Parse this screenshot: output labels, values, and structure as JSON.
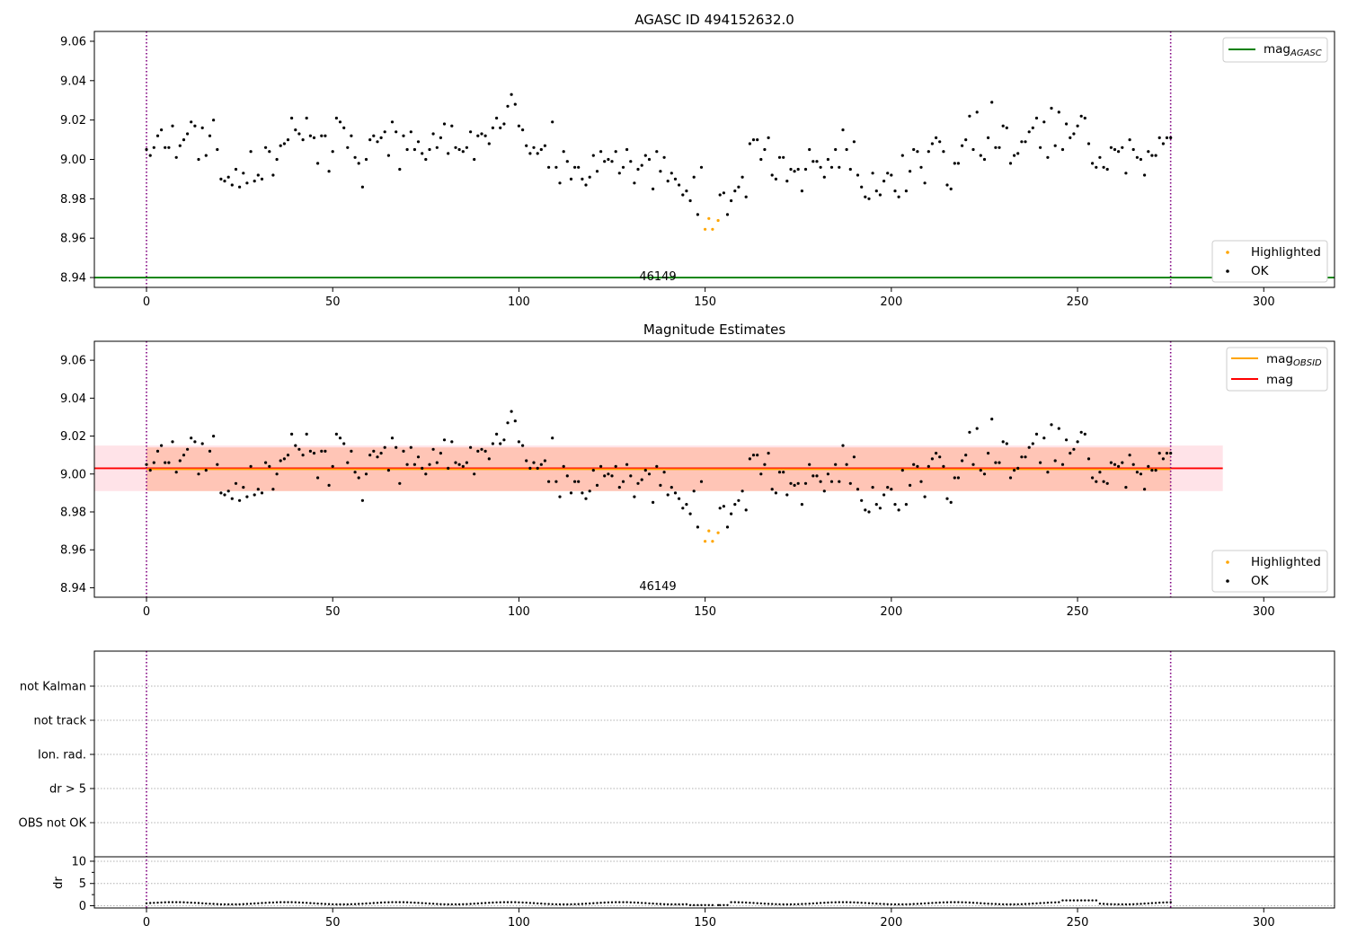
{
  "chart_data": [
    {
      "type": "scatter",
      "title": "AGASC ID 494152632.0",
      "xlim": [
        -14,
        319
      ],
      "ylim": [
        8.935,
        9.065
      ],
      "x_ticks": [
        "0",
        "50",
        "100",
        "150",
        "200",
        "250",
        "300"
      ],
      "y_ticks": [
        "8.94",
        "8.96",
        "8.98",
        "9.00",
        "9.02",
        "9.04",
        "9.06"
      ],
      "reference_lines": [
        {
          "name": "mag",
          "subscript": "AGASC",
          "y": 8.94,
          "color": "#008000"
        }
      ],
      "obsid_marks": [
        {
          "x": 0,
          "color": "#800080",
          "style": "dotted"
        },
        {
          "x": 275,
          "color": "#800080",
          "style": "dotted"
        }
      ],
      "annotations": [
        {
          "text": "46149",
          "x": 137.5
        }
      ],
      "series_legend": [
        {
          "label": "Highlighted",
          "color": "#ffa500"
        },
        {
          "label": "OK",
          "color": "#000000"
        }
      ],
      "series_ref": "mag_points"
    },
    {
      "type": "scatter",
      "title": "Magnitude Estimates",
      "xlim": [
        -14,
        319
      ],
      "ylim": [
        8.935,
        9.07
      ],
      "x_ticks": [
        "0",
        "50",
        "100",
        "150",
        "200",
        "250",
        "300"
      ],
      "y_ticks": [
        "8.94",
        "8.96",
        "8.98",
        "9.00",
        "9.02",
        "9.04",
        "9.06"
      ],
      "mean_lines": [
        {
          "name": "mag",
          "subscript": "OBSID",
          "y": 9.0025,
          "x_range": [
            0,
            275
          ],
          "color": "#ffa500",
          "band": [
            8.991,
            9.014
          ],
          "band_color": "#ffa07a"
        },
        {
          "name": "mag",
          "subscript": "",
          "y": 9.003,
          "x_range": [
            -14,
            289
          ],
          "color": "#ff0000",
          "band": [
            8.991,
            9.015
          ],
          "band_color": "#ffc0cb"
        }
      ],
      "obsid_marks": [
        {
          "x": 0,
          "color": "#800080",
          "style": "dotted"
        },
        {
          "x": 275,
          "color": "#800080",
          "style": "dotted"
        }
      ],
      "annotations": [
        {
          "text": "46149",
          "x": 137.5
        }
      ],
      "series_legend": [
        {
          "label": "Highlighted",
          "color": "#ffa500"
        },
        {
          "label": "OK",
          "color": "#000000"
        }
      ],
      "series_ref": "mag_points"
    },
    {
      "type": "scatter",
      "title": "",
      "xlim": [
        -14,
        319
      ],
      "x_ticks": [
        "0",
        "50",
        "100",
        "150",
        "200",
        "250",
        "300"
      ],
      "flag_rows": [
        "not Kalman",
        "not track",
        "Ion. rad.",
        "dr > 5",
        "OBS not OK"
      ],
      "dr_ylabel": "dr",
      "dr_ylim": [
        -0.5,
        11
      ],
      "dr_ticks": [
        "0",
        "5",
        "10"
      ],
      "obsid_marks": [
        {
          "x": 0,
          "color": "#800080",
          "style": "dotted"
        },
        {
          "x": 275,
          "color": "#800080",
          "style": "dotted"
        }
      ]
    }
  ],
  "mag_points": {
    "highlighted": [
      [
        150,
        8.9645
      ],
      [
        151,
        8.97
      ],
      [
        152,
        8.9645
      ],
      [
        153.5,
        8.969
      ]
    ],
    "ok": [
      [
        0,
        9.005
      ],
      [
        1,
        9.002
      ],
      [
        2,
        9.006
      ],
      [
        3,
        9.012
      ],
      [
        4,
        9.015
      ],
      [
        5,
        9.006
      ],
      [
        6,
        9.006
      ],
      [
        7,
        9.017
      ],
      [
        8,
        9.001
      ],
      [
        9,
        9.007
      ],
      [
        10,
        9.01
      ],
      [
        11,
        9.013
      ],
      [
        12,
        9.019
      ],
      [
        13,
        9.017
      ],
      [
        14,
        9.0
      ],
      [
        15,
        9.016
      ],
      [
        16,
        9.002
      ],
      [
        17,
        9.012
      ],
      [
        18,
        9.02
      ],
      [
        19,
        9.005
      ],
      [
        20,
        8.99
      ],
      [
        21,
        8.989
      ],
      [
        22,
        8.991
      ],
      [
        23,
        8.987
      ],
      [
        24,
        8.995
      ],
      [
        25,
        8.986
      ],
      [
        26,
        8.993
      ],
      [
        27,
        8.988
      ],
      [
        28,
        9.004
      ],
      [
        29,
        8.989
      ],
      [
        30,
        8.992
      ],
      [
        31,
        8.99
      ],
      [
        32,
        9.006
      ],
      [
        33,
        9.004
      ],
      [
        34,
        8.992
      ],
      [
        35,
        9.0
      ],
      [
        36,
        9.007
      ],
      [
        37,
        9.008
      ],
      [
        38,
        9.01
      ],
      [
        39,
        9.021
      ],
      [
        40,
        9.015
      ],
      [
        41,
        9.013
      ],
      [
        42,
        9.01
      ],
      [
        43,
        9.021
      ],
      [
        44,
        9.012
      ],
      [
        45,
        9.011
      ],
      [
        46,
        8.998
      ],
      [
        47,
        9.012
      ],
      [
        48,
        9.012
      ],
      [
        49,
        8.994
      ],
      [
        50,
        9.004
      ],
      [
        51,
        9.021
      ],
      [
        52,
        9.019
      ],
      [
        53,
        9.016
      ],
      [
        54,
        9.006
      ],
      [
        55,
        9.012
      ],
      [
        56,
        9.001
      ],
      [
        57,
        8.998
      ],
      [
        58,
        8.986
      ],
      [
        59,
        9.0
      ],
      [
        60,
        9.01
      ],
      [
        61,
        9.012
      ],
      [
        62,
        9.009
      ],
      [
        63,
        9.011
      ],
      [
        64,
        9.014
      ],
      [
        65,
        9.002
      ],
      [
        66,
        9.019
      ],
      [
        67,
        9.014
      ],
      [
        68,
        8.995
      ],
      [
        69,
        9.012
      ],
      [
        70,
        9.005
      ],
      [
        71,
        9.014
      ],
      [
        72,
        9.005
      ],
      [
        73,
        9.009
      ],
      [
        74,
        9.003
      ],
      [
        75,
        9.0
      ],
      [
        76,
        9.005
      ],
      [
        77,
        9.013
      ],
      [
        78,
        9.006
      ],
      [
        79,
        9.011
      ],
      [
        80,
        9.018
      ],
      [
        81,
        9.003
      ],
      [
        82,
        9.017
      ],
      [
        83,
        9.006
      ],
      [
        84,
        9.005
      ],
      [
        85,
        9.004
      ],
      [
        86,
        9.006
      ],
      [
        87,
        9.014
      ],
      [
        88,
        9.0
      ],
      [
        89,
        9.012
      ],
      [
        90,
        9.013
      ],
      [
        91,
        9.012
      ],
      [
        92,
        9.008
      ],
      [
        93,
        9.016
      ],
      [
        94,
        9.021
      ],
      [
        95,
        9.016
      ],
      [
        96,
        9.018
      ],
      [
        97,
        9.027
      ],
      [
        98,
        9.033
      ],
      [
        99,
        9.028
      ],
      [
        100,
        9.017
      ],
      [
        101,
        9.015
      ],
      [
        102,
        9.007
      ],
      [
        103,
        9.003
      ],
      [
        104,
        9.006
      ],
      [
        105,
        9.003
      ],
      [
        106,
        9.005
      ],
      [
        107,
        9.007
      ],
      [
        108,
        8.996
      ],
      [
        109,
        9.019
      ],
      [
        110,
        8.996
      ],
      [
        111,
        8.988
      ],
      [
        112,
        9.004
      ],
      [
        113,
        8.999
      ],
      [
        114,
        8.99
      ],
      [
        115,
        8.996
      ],
      [
        116,
        8.996
      ],
      [
        117,
        8.99
      ],
      [
        118,
        8.987
      ],
      [
        119,
        8.991
      ],
      [
        120,
        9.002
      ],
      [
        121,
        8.994
      ],
      [
        122,
        9.004
      ],
      [
        123,
        8.999
      ],
      [
        124,
        9.0
      ],
      [
        125,
        8.999
      ],
      [
        126,
        9.004
      ],
      [
        127,
        8.993
      ],
      [
        128,
        8.996
      ],
      [
        129,
        9.005
      ],
      [
        130,
        8.999
      ],
      [
        131,
        8.988
      ],
      [
        132,
        8.995
      ],
      [
        133,
        8.997
      ],
      [
        134,
        9.002
      ],
      [
        135,
        9.0
      ],
      [
        136,
        8.985
      ],
      [
        137,
        9.004
      ],
      [
        138,
        8.994
      ],
      [
        139,
        9.001
      ],
      [
        140,
        8.989
      ],
      [
        141,
        8.993
      ],
      [
        142,
        8.99
      ],
      [
        143,
        8.987
      ],
      [
        144,
        8.982
      ],
      [
        145,
        8.984
      ],
      [
        146,
        8.979
      ],
      [
        147,
        8.991
      ],
      [
        148,
        8.972
      ],
      [
        149,
        8.996
      ],
      [
        154,
        8.982
      ],
      [
        155,
        8.983
      ],
      [
        156,
        8.972
      ],
      [
        157,
        8.979
      ],
      [
        158,
        8.984
      ],
      [
        159,
        8.986
      ],
      [
        160,
        8.991
      ],
      [
        161,
        8.981
      ],
      [
        162,
        9.008
      ],
      [
        163,
        9.01
      ],
      [
        164,
        9.01
      ],
      [
        165,
        9.0
      ],
      [
        166,
        9.005
      ],
      [
        167,
        9.011
      ],
      [
        168,
        8.992
      ],
      [
        169,
        8.99
      ],
      [
        170,
        9.001
      ],
      [
        171,
        9.001
      ],
      [
        172,
        8.989
      ],
      [
        173,
        8.995
      ],
      [
        174,
        8.994
      ],
      [
        175,
        8.995
      ],
      [
        176,
        8.984
      ],
      [
        177,
        8.995
      ],
      [
        178,
        9.005
      ],
      [
        179,
        8.999
      ],
      [
        180,
        8.999
      ],
      [
        181,
        8.996
      ],
      [
        182,
        8.991
      ],
      [
        183,
        9.0
      ],
      [
        184,
        8.996
      ],
      [
        185,
        9.005
      ],
      [
        186,
        8.996
      ],
      [
        187,
        9.015
      ],
      [
        188,
        9.005
      ],
      [
        189,
        8.995
      ],
      [
        190,
        9.009
      ],
      [
        191,
        8.992
      ],
      [
        192,
        8.986
      ],
      [
        193,
        8.981
      ],
      [
        194,
        8.98
      ],
      [
        195,
        8.993
      ],
      [
        196,
        8.984
      ],
      [
        197,
        8.982
      ],
      [
        198,
        8.989
      ],
      [
        199,
        8.993
      ],
      [
        200,
        8.992
      ],
      [
        201,
        8.984
      ],
      [
        202,
        8.981
      ],
      [
        203,
        9.002
      ],
      [
        204,
        8.984
      ],
      [
        205,
        8.994
      ],
      [
        206,
        9.005
      ],
      [
        207,
        9.004
      ],
      [
        208,
        8.996
      ],
      [
        209,
        8.988
      ],
      [
        210,
        9.004
      ],
      [
        211,
        9.008
      ],
      [
        212,
        9.011
      ],
      [
        213,
        9.009
      ],
      [
        214,
        9.004
      ],
      [
        215,
        8.987
      ],
      [
        216,
        8.985
      ],
      [
        217,
        8.998
      ],
      [
        218,
        8.998
      ],
      [
        219,
        9.007
      ],
      [
        220,
        9.01
      ],
      [
        221,
        9.022
      ],
      [
        222,
        9.005
      ],
      [
        223,
        9.024
      ],
      [
        224,
        9.002
      ],
      [
        225,
        9.0
      ],
      [
        226,
        9.011
      ],
      [
        227,
        9.029
      ],
      [
        228,
        9.006
      ],
      [
        229,
        9.006
      ],
      [
        230,
        9.017
      ],
      [
        231,
        9.016
      ],
      [
        232,
        8.998
      ],
      [
        233,
        9.002
      ],
      [
        234,
        9.003
      ],
      [
        235,
        9.009
      ],
      [
        236,
        9.009
      ],
      [
        237,
        9.014
      ],
      [
        238,
        9.016
      ],
      [
        239,
        9.021
      ],
      [
        240,
        9.006
      ],
      [
        241,
        9.019
      ],
      [
        242,
        9.001
      ],
      [
        243,
        9.026
      ],
      [
        244,
        9.007
      ],
      [
        245,
        9.024
      ],
      [
        246,
        9.005
      ],
      [
        247,
        9.018
      ],
      [
        248,
        9.011
      ],
      [
        249,
        9.013
      ],
      [
        250,
        9.017
      ],
      [
        251,
        9.022
      ],
      [
        252,
        9.021
      ],
      [
        253,
        9.008
      ],
      [
        254,
        8.998
      ],
      [
        255,
        8.996
      ],
      [
        256,
        9.001
      ],
      [
        257,
        8.996
      ],
      [
        258,
        8.995
      ],
      [
        259,
        9.006
      ],
      [
        260,
        9.005
      ],
      [
        261,
        9.004
      ],
      [
        262,
        9.006
      ],
      [
        263,
        8.993
      ],
      [
        264,
        9.01
      ],
      [
        265,
        9.005
      ],
      [
        266,
        9.001
      ],
      [
        267,
        9.0
      ],
      [
        268,
        8.992
      ],
      [
        269,
        9.004
      ],
      [
        270,
        9.002
      ],
      [
        271,
        9.002
      ],
      [
        272,
        9.011
      ],
      [
        273,
        9.008
      ],
      [
        274,
        9.011
      ],
      [
        275,
        9.011
      ]
    ]
  }
}
